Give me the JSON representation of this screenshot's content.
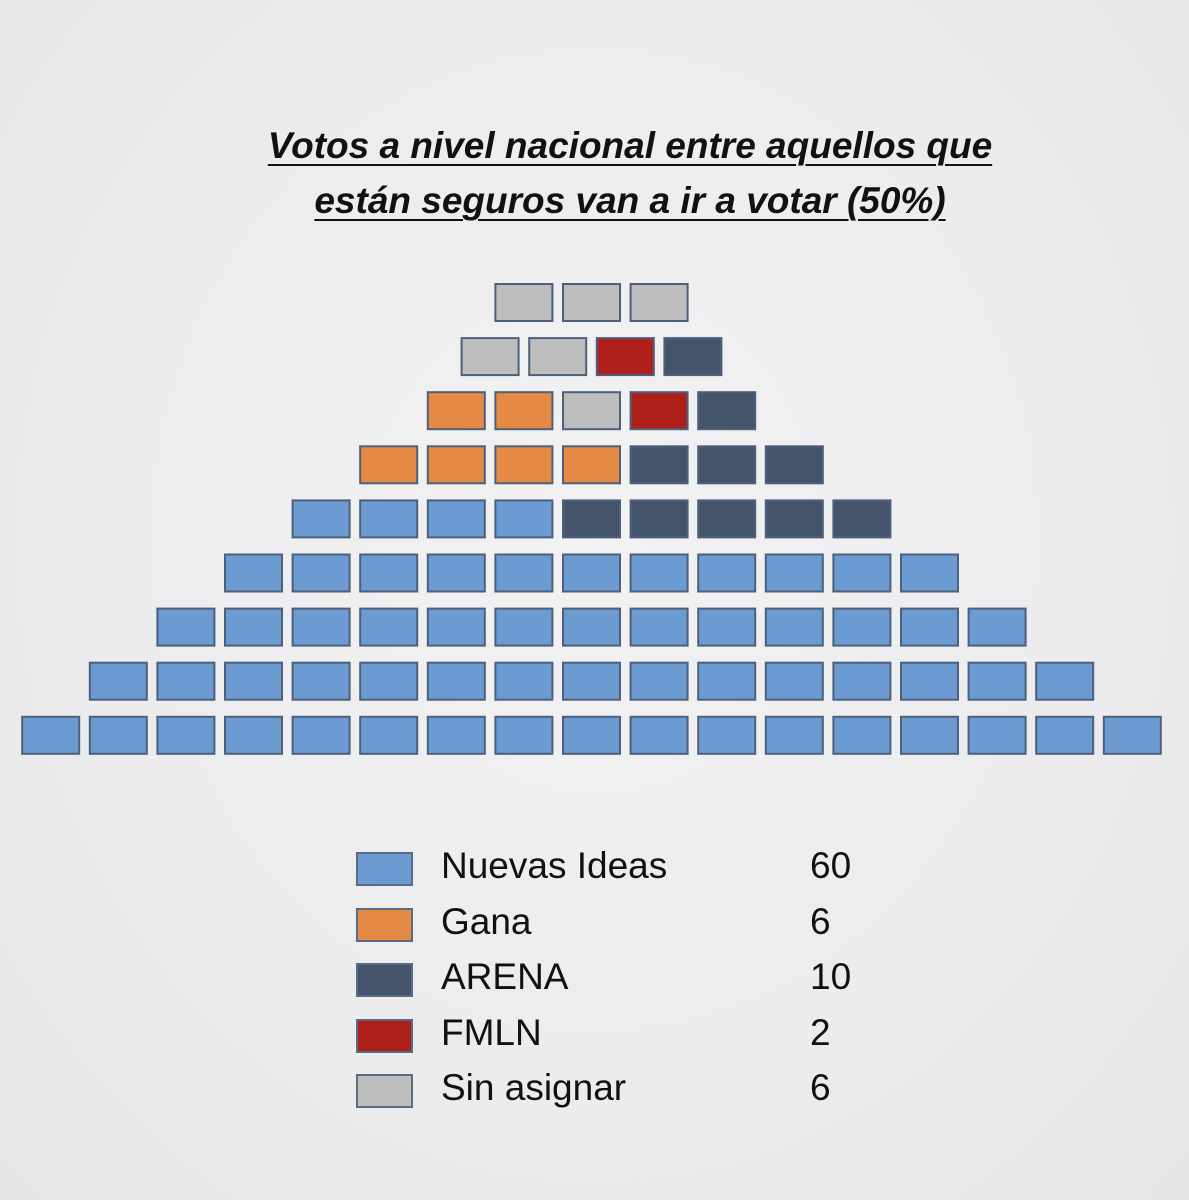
{
  "chart_data": {
    "type": "waffle",
    "title_line1": "Votos a nivel nacional entre aquellos que",
    "title_line2": "están seguros van a ir a votar (50%)",
    "total_seats": 84,
    "row_lengths": [
      3,
      4,
      5,
      7,
      9,
      11,
      13,
      15,
      17
    ],
    "rows": [
      [
        "Sin asignar",
        "Sin asignar",
        "Sin asignar"
      ],
      [
        "Sin asignar",
        "Sin asignar",
        "FMLN",
        "ARENA"
      ],
      [
        "Gana",
        "Gana",
        "Sin asignar",
        "FMLN",
        "ARENA"
      ],
      [
        "Gana",
        "Gana",
        "Gana",
        "Gana",
        "ARENA",
        "ARENA",
        "ARENA"
      ],
      [
        "Nuevas Ideas",
        "Nuevas Ideas",
        "Nuevas Ideas",
        "Nuevas Ideas",
        "ARENA",
        "ARENA",
        "ARENA",
        "ARENA",
        "ARENA"
      ],
      [
        "Nuevas Ideas",
        "Nuevas Ideas",
        "Nuevas Ideas",
        "Nuevas Ideas",
        "Nuevas Ideas",
        "Nuevas Ideas",
        "Nuevas Ideas",
        "Nuevas Ideas",
        "Nuevas Ideas",
        "Nuevas Ideas",
        "Nuevas Ideas"
      ],
      [
        "Nuevas Ideas",
        "Nuevas Ideas",
        "Nuevas Ideas",
        "Nuevas Ideas",
        "Nuevas Ideas",
        "Nuevas Ideas",
        "Nuevas Ideas",
        "Nuevas Ideas",
        "Nuevas Ideas",
        "Nuevas Ideas",
        "Nuevas Ideas",
        "Nuevas Ideas",
        "Nuevas Ideas"
      ],
      [
        "Nuevas Ideas",
        "Nuevas Ideas",
        "Nuevas Ideas",
        "Nuevas Ideas",
        "Nuevas Ideas",
        "Nuevas Ideas",
        "Nuevas Ideas",
        "Nuevas Ideas",
        "Nuevas Ideas",
        "Nuevas Ideas",
        "Nuevas Ideas",
        "Nuevas Ideas",
        "Nuevas Ideas",
        "Nuevas Ideas",
        "Nuevas Ideas"
      ],
      [
        "Nuevas Ideas",
        "Nuevas Ideas",
        "Nuevas Ideas",
        "Nuevas Ideas",
        "Nuevas Ideas",
        "Nuevas Ideas",
        "Nuevas Ideas",
        "Nuevas Ideas",
        "Nuevas Ideas",
        "Nuevas Ideas",
        "Nuevas Ideas",
        "Nuevas Ideas",
        "Nuevas Ideas",
        "Nuevas Ideas",
        "Nuevas Ideas",
        "Nuevas Ideas",
        "Nuevas Ideas"
      ]
    ],
    "series": [
      {
        "name": "Nuevas Ideas",
        "value": 60,
        "color": "#6b9bd1"
      },
      {
        "name": "Gana",
        "value": 6,
        "color": "#e58a45"
      },
      {
        "name": "ARENA",
        "value": 10,
        "color": "#44546a"
      },
      {
        "name": "FMLN",
        "value": 2,
        "color": "#b0201b"
      },
      {
        "name": "Sin asignar",
        "value": 6,
        "color": "#bdbdbd"
      }
    ],
    "legend_values": [
      "60",
      "6",
      "10",
      "2",
      "6"
    ],
    "legend_position": "bottom-center",
    "seat_border_color": "#4d5f7c"
  }
}
